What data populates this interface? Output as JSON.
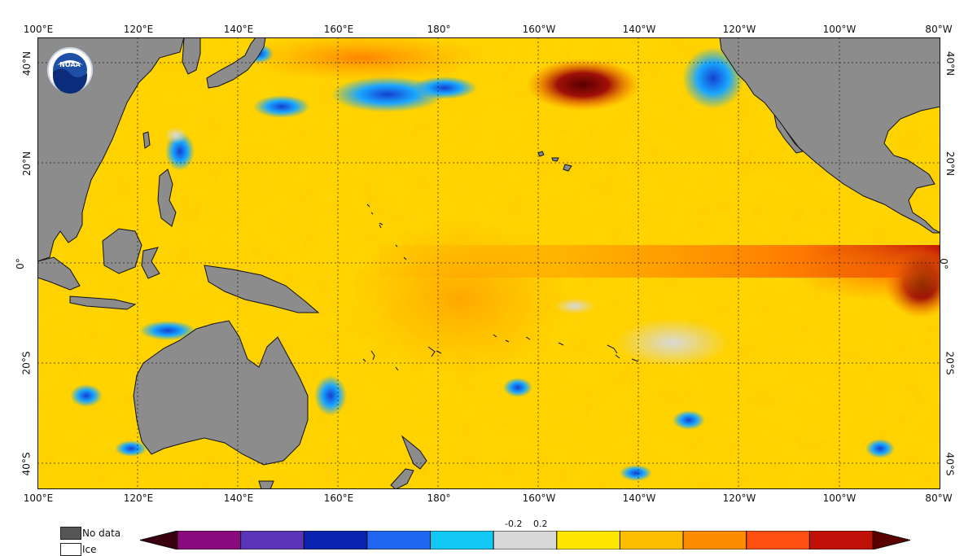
{
  "map": {
    "longitude_labels": [
      "100°E",
      "120°E",
      "140°E",
      "160°E",
      "180°",
      "160°W",
      "140°W",
      "120°W",
      "100°W",
      "80°W"
    ],
    "latitude_labels": [
      "40°N",
      "20°N",
      "0°",
      "20°S",
      "40°S"
    ],
    "logo_text": "NOAA",
    "colors": {
      "land": "#8c8c8c",
      "nodata": "#555555",
      "neutral": "#d9d9d9",
      "warm_base": "#ffd400",
      "equator_band": "#ff8a00",
      "hot": "#b0000c",
      "cool": "#19a6ff",
      "deep_cool": "#1440d0"
    }
  },
  "legend": {
    "nodata_label": "No data",
    "ice_label": "Ice",
    "neg_tick": "-0.2",
    "pos_tick": "0.2",
    "colorbar_colors": [
      "#3a0010",
      "#8b0a7e",
      "#5a35b8",
      "#0a22b0",
      "#1f66f0",
      "#12c8f5",
      "#d8d8d8",
      "#ffe600",
      "#ffbd00",
      "#ff8c00",
      "#ff4f10",
      "#c01008",
      "#5a0000"
    ]
  }
}
